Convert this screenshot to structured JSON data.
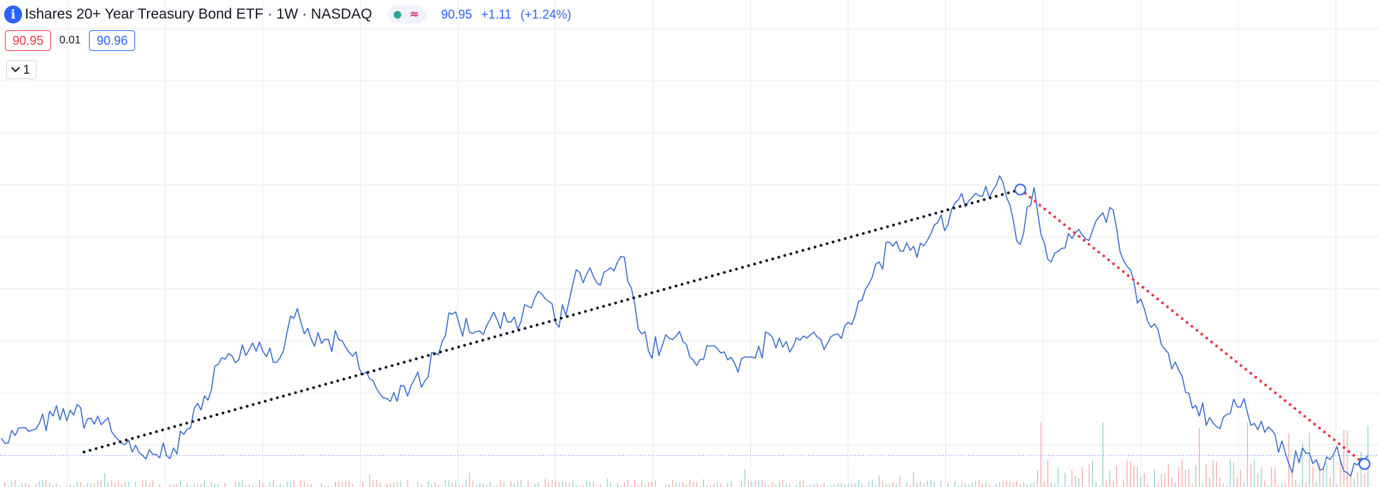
{
  "header": {
    "info_icon": "info-icon",
    "info_glyph": "i",
    "symbol_title": "Ishares 20+ Year Treasury Bond ETF · 1W · NASDAQ",
    "market_status": "market-open-dot",
    "delayed_glyph": "≈",
    "last_price": "90.95",
    "change": "+1.11",
    "change_pct": "(+1.24%)"
  },
  "quote": {
    "bid": "90.95",
    "spread": "0.01",
    "ask": "90.96"
  },
  "indicator_toggle": {
    "icon": "chevron-down-icon",
    "count": "1"
  },
  "colors": {
    "price_line": "#3a6fd6",
    "grid": "#e6e8ee",
    "volume_up": "#26a69a",
    "volume_down": "#ef5350",
    "trendline_up": "#131722",
    "trendline_down": "#f23645",
    "accent": "#2962ff",
    "bid": "#f23645"
  },
  "chart_data": {
    "type": "line",
    "title": "Ishares 20+ Year Treasury Bond ETF · 1W · NASDAQ",
    "interval": "1W",
    "xlabel": "",
    "ylabel": "",
    "grid": true,
    "last_price": 90.95,
    "ylim": [
      88,
      135
    ],
    "close_anchor_index": [
      0,
      10,
      20,
      25,
      30,
      38,
      42,
      50,
      58,
      62,
      75,
      80,
      85,
      90,
      100,
      110,
      118,
      126,
      131,
      136,
      146,
      150,
      156,
      162,
      168,
      174,
      180,
      188,
      196,
      201,
      206,
      214,
      224,
      232,
      240,
      250,
      258,
      266,
      276,
      282,
      288,
      291,
      296,
      300,
      304,
      310,
      316,
      322,
      326,
      333,
      338,
      344,
      352,
      360,
      368,
      374,
      380,
      384,
      387,
      390,
      394,
      397
    ],
    "close_anchor_value": [
      92.7,
      93.6,
      95.5,
      94.6,
      94.4,
      91.3,
      90.6,
      91.7,
      95.5,
      99.9,
      102.3,
      100.3,
      104.7,
      102.6,
      101.8,
      97.1,
      96.9,
      101.2,
      105.1,
      103.3,
      105.3,
      103.6,
      107.4,
      103.8,
      109.3,
      108.0,
      110.9,
      101.4,
      102.9,
      100.5,
      101.9,
      99.3,
      102.8,
      102.5,
      102.2,
      106.5,
      112.3,
      110.8,
      115.6,
      116.8,
      117.5,
      118.3,
      112.1,
      117.8,
      110.6,
      113.2,
      112.5,
      115.8,
      110.5,
      104.4,
      101.6,
      97.3,
      94.2,
      95.8,
      93.8,
      90.1,
      91.2,
      89.6,
      91.1,
      89.4,
      90.0,
      90.95
    ],
    "volume_max": 100,
    "trendlines": [
      {
        "from_index": 24,
        "from_value": 91.3,
        "to_index": 296,
        "to_value": 117.6,
        "style": "dotted"
      },
      {
        "from_index": 296,
        "from_value": 117.6,
        "to_index": 396,
        "to_value": 90.1,
        "style": "dotted"
      }
    ]
  }
}
